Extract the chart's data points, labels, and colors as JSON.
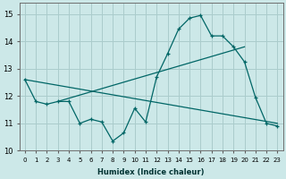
{
  "xlabel": "Humidex (Indice chaleur)",
  "bg_color": "#cce8e8",
  "grid_color": "#aacccc",
  "line_color": "#006666",
  "xlim": [
    -0.5,
    23.5
  ],
  "ylim": [
    10,
    15.4
  ],
  "yticks": [
    10,
    11,
    12,
    13,
    14,
    15
  ],
  "xticks": [
    0,
    1,
    2,
    3,
    4,
    5,
    6,
    7,
    8,
    9,
    10,
    11,
    12,
    13,
    14,
    15,
    16,
    17,
    18,
    19,
    20,
    21,
    22,
    23
  ],
  "xtick_labels": [
    "0",
    "1",
    "2",
    "3",
    "4",
    "5",
    "6",
    "7",
    "8",
    "9",
    "10",
    "11",
    "12",
    "13",
    "14",
    "15",
    "16",
    "17",
    "18",
    "19",
    "20",
    "21",
    "22",
    "23"
  ],
  "main_x": [
    0,
    1,
    2,
    3,
    4,
    5,
    6,
    7,
    8,
    9,
    10,
    11,
    12,
    13,
    14,
    15,
    16,
    17,
    18,
    19,
    20,
    21,
    22,
    23
  ],
  "main_y": [
    12.6,
    11.8,
    11.7,
    11.8,
    11.8,
    11.0,
    11.15,
    11.05,
    10.35,
    10.65,
    11.55,
    11.05,
    12.7,
    13.55,
    14.45,
    14.85,
    14.95,
    14.2,
    14.2,
    13.8,
    13.25,
    11.95,
    11.0,
    10.9
  ],
  "trend1_x": [
    0,
    23
  ],
  "trend1_y": [
    12.6,
    11.0
  ],
  "trend2_x": [
    3,
    20
  ],
  "trend2_y": [
    11.8,
    13.8
  ]
}
